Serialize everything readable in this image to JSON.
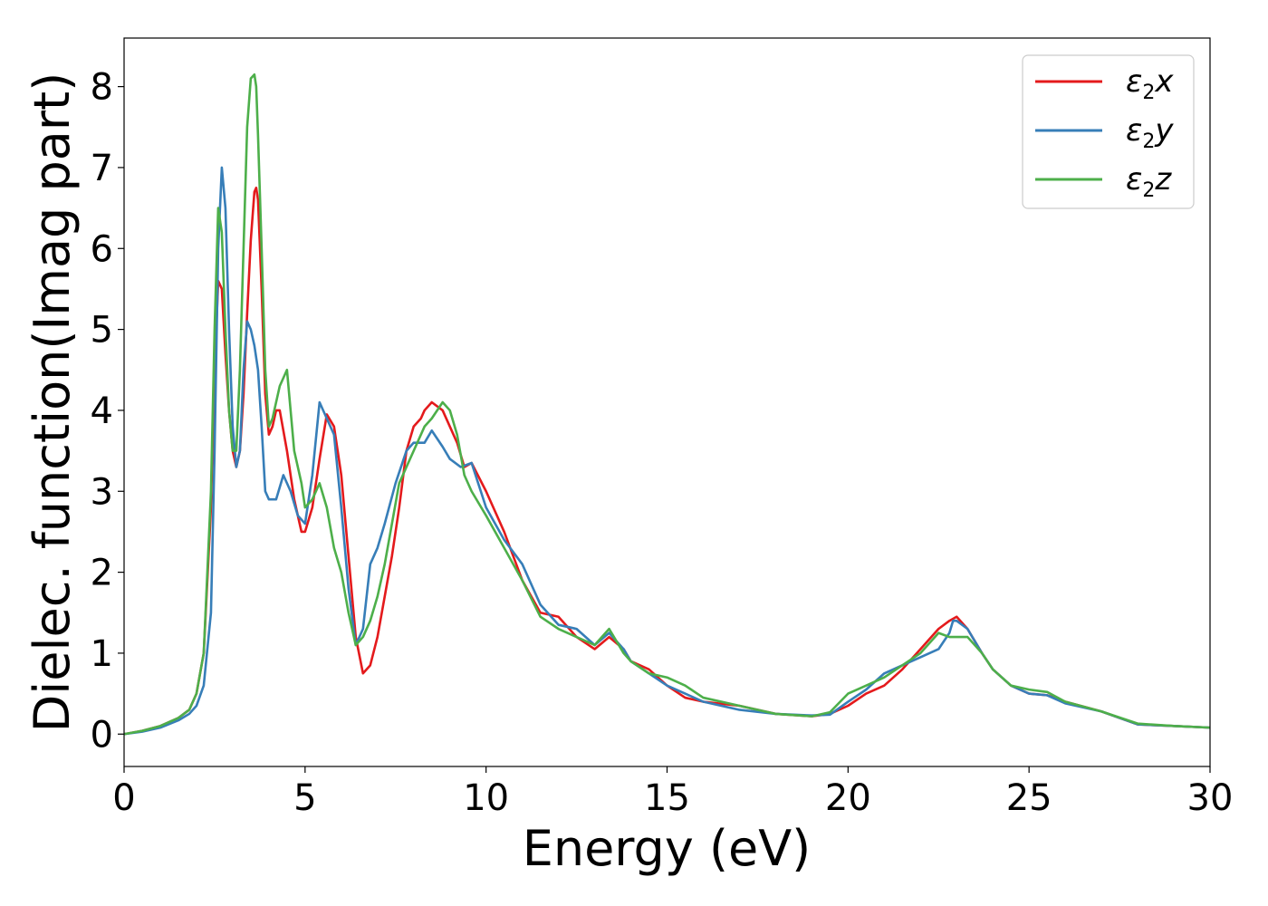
{
  "chart_data": {
    "type": "line",
    "title": "",
    "xlabel": "Energy (eV)",
    "ylabel": "Dielec. function(Imag part)",
    "xlim": [
      0,
      30
    ],
    "ylim": [
      -0.4,
      8.6
    ],
    "xticks": [
      0,
      5,
      10,
      15,
      20,
      25,
      30
    ],
    "yticks": [
      0,
      1,
      2,
      3,
      4,
      5,
      6,
      7,
      8
    ],
    "grid": false,
    "legend_position": "top-right",
    "series": [
      {
        "name": "ε₂x",
        "legend_base": "ε",
        "legend_sub": "2",
        "legend_var": "x",
        "color": "#e41a1c",
        "x": [
          0,
          0.5,
          1,
          1.5,
          1.8,
          2.0,
          2.2,
          2.4,
          2.5,
          2.6,
          2.7,
          2.8,
          2.9,
          3.0,
          3.1,
          3.2,
          3.3,
          3.4,
          3.5,
          3.6,
          3.65,
          3.7,
          3.8,
          3.9,
          4.0,
          4.1,
          4.2,
          4.3,
          4.5,
          4.7,
          4.9,
          5.0,
          5.2,
          5.4,
          5.6,
          5.8,
          6.0,
          6.2,
          6.4,
          6.6,
          6.8,
          7.0,
          7.2,
          7.4,
          7.6,
          7.8,
          8.0,
          8.2,
          8.3,
          8.5,
          8.8,
          9.0,
          9.2,
          9.4,
          9.6,
          10,
          10.5,
          11,
          11.5,
          12,
          12.5,
          13,
          13.4,
          13.8,
          14,
          14.5,
          15,
          15.5,
          16,
          17,
          18,
          19,
          19.5,
          20,
          20.5,
          21,
          21.5,
          22,
          22.5,
          22.8,
          23,
          23.3,
          23.7,
          24,
          24.5,
          25,
          25.5,
          26,
          27,
          28,
          29,
          30
        ],
        "values": [
          0,
          0.04,
          0.1,
          0.2,
          0.3,
          0.5,
          1.0,
          2.8,
          4.5,
          5.6,
          5.5,
          4.7,
          4.0,
          3.5,
          3.3,
          3.5,
          4.2,
          5.2,
          6.1,
          6.7,
          6.75,
          6.6,
          5.5,
          4.2,
          3.7,
          3.8,
          4.0,
          4.0,
          3.5,
          2.9,
          2.5,
          2.5,
          2.8,
          3.4,
          3.95,
          3.8,
          3.2,
          2.2,
          1.2,
          0.75,
          0.85,
          1.2,
          1.7,
          2.2,
          2.8,
          3.5,
          3.8,
          3.9,
          4.0,
          4.1,
          4.0,
          3.8,
          3.6,
          3.3,
          3.35,
          3.0,
          2.5,
          1.9,
          1.5,
          1.45,
          1.2,
          1.05,
          1.2,
          1.05,
          0.9,
          0.8,
          0.6,
          0.45,
          0.4,
          0.35,
          0.25,
          0.22,
          0.25,
          0.35,
          0.5,
          0.6,
          0.8,
          1.05,
          1.3,
          1.4,
          1.45,
          1.3,
          1.0,
          0.8,
          0.6,
          0.5,
          0.48,
          0.4,
          0.28,
          0.12,
          0.1,
          0.08
        ]
      },
      {
        "name": "ε₂y",
        "legend_base": "ε",
        "legend_sub": "2",
        "legend_var": "y",
        "color": "#377eb8",
        "x": [
          0,
          0.5,
          1,
          1.5,
          1.8,
          2.0,
          2.2,
          2.4,
          2.5,
          2.6,
          2.7,
          2.8,
          2.9,
          3.0,
          3.1,
          3.2,
          3.3,
          3.4,
          3.5,
          3.6,
          3.7,
          3.8,
          3.9,
          4.0,
          4.2,
          4.4,
          4.6,
          4.8,
          5.0,
          5.2,
          5.4,
          5.6,
          5.8,
          6.0,
          6.2,
          6.4,
          6.6,
          6.8,
          7.0,
          7.2,
          7.5,
          7.8,
          8.0,
          8.3,
          8.5,
          8.8,
          9.0,
          9.3,
          9.6,
          10,
          10.5,
          11,
          11.5,
          12,
          12.5,
          13,
          13.4,
          13.8,
          14,
          14.5,
          15,
          15.5,
          16,
          17,
          18,
          19,
          19.5,
          20,
          20.5,
          21,
          21.5,
          22,
          22.5,
          22.8,
          22.9,
          23,
          23.3,
          23.7,
          24,
          24.5,
          25,
          25.5,
          26,
          27,
          28,
          29,
          30
        ],
        "values": [
          0,
          0.03,
          0.08,
          0.17,
          0.25,
          0.35,
          0.6,
          1.5,
          3.5,
          6.0,
          7.0,
          6.5,
          5.0,
          3.8,
          3.3,
          3.5,
          4.5,
          5.1,
          5.0,
          4.8,
          4.5,
          3.8,
          3.0,
          2.9,
          2.9,
          3.2,
          3.0,
          2.7,
          2.6,
          3.2,
          4.1,
          3.9,
          3.7,
          2.8,
          1.8,
          1.1,
          1.3,
          2.1,
          2.3,
          2.6,
          3.1,
          3.5,
          3.6,
          3.6,
          3.75,
          3.55,
          3.4,
          3.3,
          3.35,
          2.8,
          2.4,
          2.1,
          1.6,
          1.35,
          1.3,
          1.1,
          1.25,
          1.05,
          0.9,
          0.75,
          0.6,
          0.5,
          0.4,
          0.3,
          0.25,
          0.23,
          0.24,
          0.4,
          0.55,
          0.75,
          0.85,
          0.95,
          1.05,
          1.25,
          1.4,
          1.4,
          1.3,
          1.0,
          0.8,
          0.6,
          0.5,
          0.48,
          0.38,
          0.28,
          0.12,
          0.1,
          0.08
        ]
      },
      {
        "name": "ε₂z",
        "legend_base": "ε",
        "legend_sub": "2",
        "legend_var": "z",
        "color": "#4daf4a",
        "x": [
          0,
          0.5,
          1,
          1.5,
          1.8,
          2.0,
          2.2,
          2.4,
          2.5,
          2.6,
          2.7,
          2.8,
          2.9,
          3.0,
          3.1,
          3.2,
          3.3,
          3.4,
          3.5,
          3.6,
          3.65,
          3.7,
          3.8,
          3.9,
          4.0,
          4.1,
          4.2,
          4.3,
          4.5,
          4.7,
          4.9,
          5.0,
          5.2,
          5.4,
          5.6,
          5.8,
          6.0,
          6.2,
          6.4,
          6.6,
          6.8,
          7.0,
          7.2,
          7.4,
          7.6,
          7.8,
          8.0,
          8.3,
          8.5,
          8.8,
          9.0,
          9.2,
          9.4,
          9.6,
          10,
          10.5,
          11,
          11.5,
          12,
          12.5,
          13,
          13.4,
          13.8,
          14,
          14.5,
          15,
          15.5,
          16,
          17,
          18,
          19,
          19.5,
          20,
          20.5,
          21,
          21.5,
          22,
          22.5,
          22.8,
          23,
          23.3,
          23.7,
          24,
          24.5,
          25,
          25.5,
          26,
          27,
          28,
          29,
          30
        ],
        "values": [
          0,
          0.04,
          0.1,
          0.2,
          0.3,
          0.5,
          1.0,
          3.0,
          5.0,
          6.5,
          6.2,
          5.0,
          4.0,
          3.5,
          3.5,
          4.5,
          6.0,
          7.5,
          8.1,
          8.15,
          8.0,
          7.4,
          6.0,
          4.5,
          3.8,
          3.9,
          4.1,
          4.3,
          4.5,
          3.5,
          3.1,
          2.8,
          2.9,
          3.1,
          2.8,
          2.3,
          2.0,
          1.5,
          1.1,
          1.2,
          1.4,
          1.7,
          2.1,
          2.6,
          3.1,
          3.3,
          3.5,
          3.8,
          3.9,
          4.1,
          4.0,
          3.7,
          3.2,
          3.0,
          2.7,
          2.3,
          1.9,
          1.45,
          1.3,
          1.2,
          1.1,
          1.3,
          1.0,
          0.9,
          0.75,
          0.7,
          0.6,
          0.45,
          0.35,
          0.25,
          0.22,
          0.27,
          0.5,
          0.6,
          0.7,
          0.85,
          1.0,
          1.25,
          1.2,
          1.2,
          1.2,
          1.0,
          0.8,
          0.6,
          0.55,
          0.52,
          0.4,
          0.28,
          0.13,
          0.1,
          0.08
        ]
      }
    ]
  }
}
